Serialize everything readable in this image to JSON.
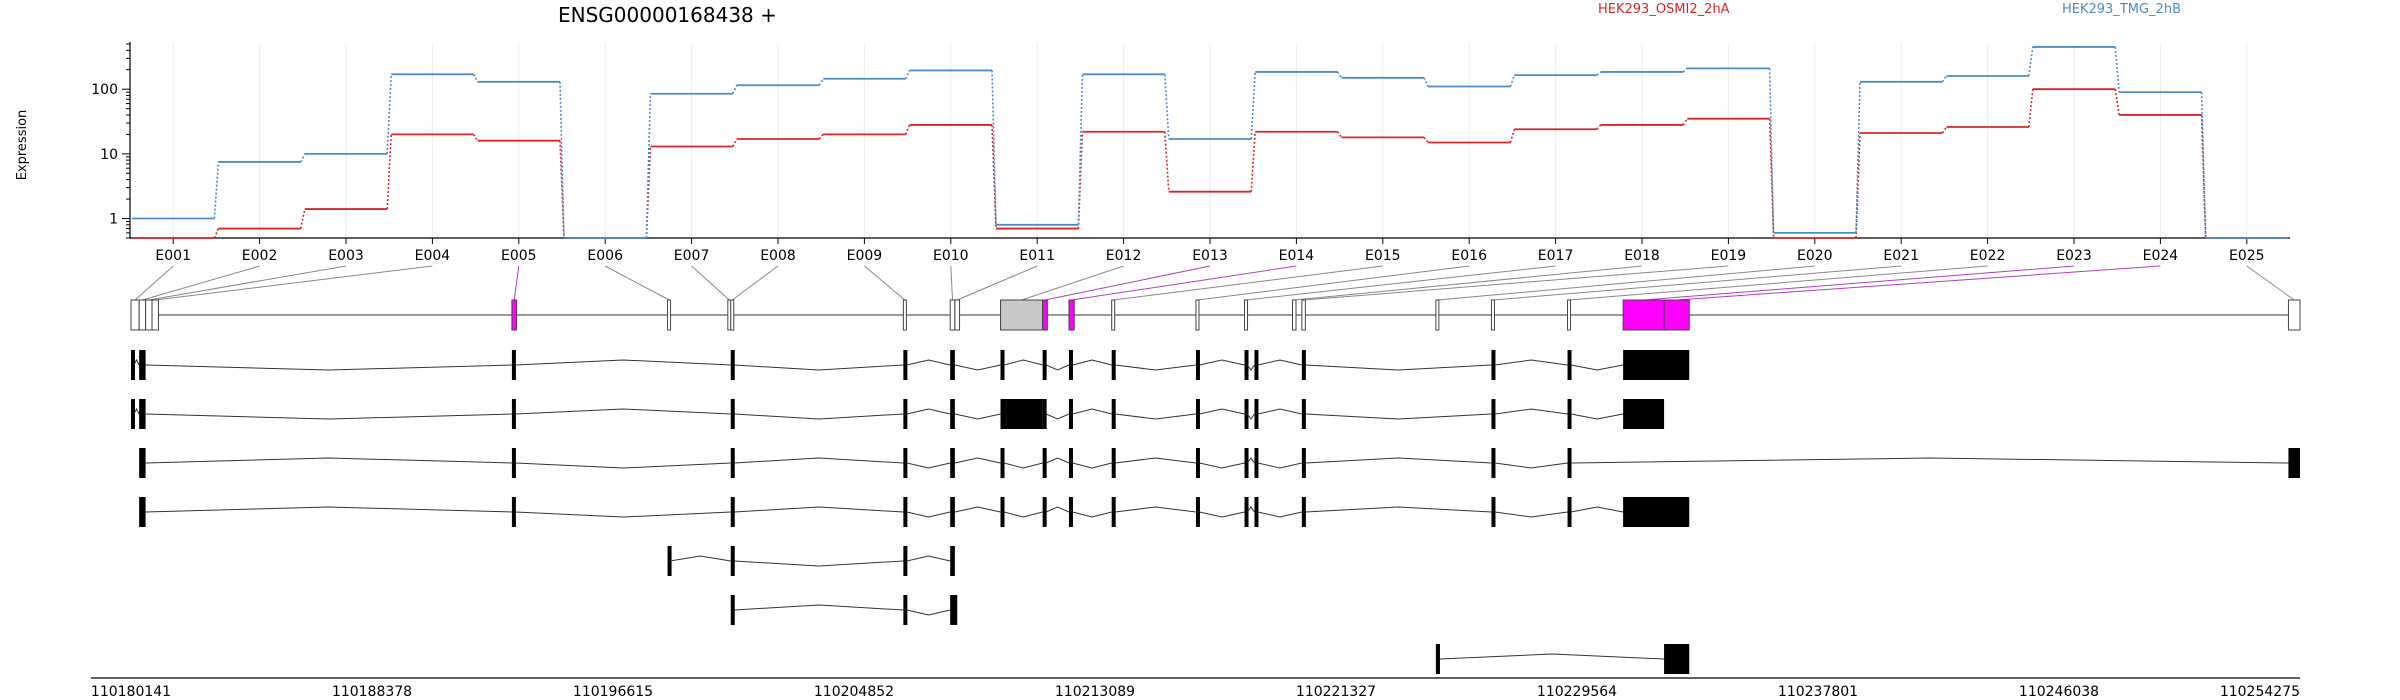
{
  "chart_data": {
    "type": "line",
    "title": "ENSG00000168438 +",
    "ylabel": "Expression",
    "yscale": "log",
    "ylim": [
      0.5,
      500
    ],
    "y_ticks": [
      "1",
      "10",
      "100"
    ],
    "categories": [
      "E001",
      "E002",
      "E003",
      "E004",
      "E005",
      "E006",
      "E007",
      "E008",
      "E009",
      "E010",
      "E011",
      "E012",
      "E013",
      "E014",
      "E015",
      "E016",
      "E017",
      "E018",
      "E019",
      "E020",
      "E021",
      "E022",
      "E023",
      "E024",
      "E025"
    ],
    "series": [
      {
        "name": "HEK293_OSMI2_2hA",
        "color": "#d62728",
        "values": [
          0.5,
          0.7,
          1.4,
          20,
          16,
          0.5,
          13,
          17,
          20,
          28,
          0.7,
          22,
          2.6,
          22,
          18,
          15,
          24,
          28,
          35,
          0.5,
          21,
          26,
          100,
          40,
          0.5
        ]
      },
      {
        "name": "HEK293_TMG_2hB",
        "color": "#4c8cc8",
        "values": [
          1,
          7.5,
          10,
          170,
          130,
          0.5,
          85,
          115,
          145,
          195,
          0.8,
          170,
          17,
          185,
          150,
          110,
          165,
          185,
          210,
          0.6,
          130,
          160,
          450,
          90,
          0.5
        ]
      }
    ],
    "coordinate_ticks": [
      "110180141",
      "110188378",
      "110196615",
      "110204852",
      "110213089",
      "110221327",
      "110229564",
      "110237801",
      "110246038",
      "110254275"
    ],
    "coord_range": [
      110180141,
      110254275
    ],
    "exons": [
      {
        "id": "E001",
        "start": 110180141,
        "end": 110180420,
        "fill": "#ffffff"
      },
      {
        "id": "E002",
        "start": 110180420,
        "end": 110180640,
        "fill": "#ffffff"
      },
      {
        "id": "E003",
        "start": 110180640,
        "end": 110180860,
        "fill": "#ffffff"
      },
      {
        "id": "E004",
        "start": 110180860,
        "end": 110181080,
        "fill": "#ffffff"
      },
      {
        "id": "E005",
        "start": 110193160,
        "end": 110193320,
        "fill": "#ff00ff"
      },
      {
        "id": "E006",
        "start": 110198480,
        "end": 110198580,
        "fill": "#ffffff"
      },
      {
        "id": "E007",
        "start": 110200540,
        "end": 110200640,
        "fill": "#ffffff"
      },
      {
        "id": "E008",
        "start": 110200640,
        "end": 110200740,
        "fill": "#ffffff"
      },
      {
        "id": "E009",
        "start": 110206540,
        "end": 110206640,
        "fill": "#ffffff"
      },
      {
        "id": "E010",
        "start": 110208140,
        "end": 110208300,
        "fill": "#ffffff"
      },
      {
        "id": "E011",
        "start": 110208300,
        "end": 110208460,
        "fill": "#ffffff"
      },
      {
        "id": "E012",
        "start": 110209860,
        "end": 110211300,
        "fill": "#c8c8c8"
      },
      {
        "id": "E013",
        "start": 110211300,
        "end": 110211460,
        "fill": "#ff00ff"
      },
      {
        "id": "E014",
        "start": 110212200,
        "end": 110212380,
        "fill": "#ff00ff"
      },
      {
        "id": "E015",
        "start": 110213660,
        "end": 110213760,
        "fill": "#ffffff"
      },
      {
        "id": "E016",
        "start": 110216540,
        "end": 110216640,
        "fill": "#ffffff"
      },
      {
        "id": "E017",
        "start": 110218200,
        "end": 110218300,
        "fill": "#ffffff"
      },
      {
        "id": "E018",
        "start": 110219840,
        "end": 110219960,
        "fill": "#ffffff"
      },
      {
        "id": "E019",
        "start": 110220160,
        "end": 110220280,
        "fill": "#ffffff"
      },
      {
        "id": "E020",
        "start": 110224740,
        "end": 110224840,
        "fill": "#ffffff"
      },
      {
        "id": "E021",
        "start": 110226640,
        "end": 110226740,
        "fill": "#ffffff"
      },
      {
        "id": "E022",
        "start": 110229240,
        "end": 110229340,
        "fill": "#ffffff"
      },
      {
        "id": "E023",
        "start": 110231140,
        "end": 110232540,
        "fill": "#ff00ff"
      },
      {
        "id": "E024",
        "start": 110232540,
        "end": 110233400,
        "fill": "#ff00ff"
      },
      {
        "id": "E025",
        "start": 110253880,
        "end": 110254275,
        "fill": "#ffffff"
      }
    ],
    "transcripts": [
      {
        "blocks": [
          [
            110180141,
            110180240
          ],
          [
            110180420,
            110180640
          ],
          [
            110193160,
            110193280
          ],
          [
            110200640,
            110200760
          ],
          [
            110206540,
            110206660
          ],
          [
            110208140,
            110208300
          ],
          [
            110209860,
            110209980
          ],
          [
            110211300,
            110211420
          ],
          [
            110212200,
            110212320
          ],
          [
            110213660,
            110213780
          ],
          [
            110216540,
            110216660
          ],
          [
            110218200,
            110218300
          ],
          [
            110218540,
            110218660
          ],
          [
            110220160,
            110220280
          ],
          [
            110226640,
            110226760
          ],
          [
            110229240,
            110229360
          ],
          [
            110231140,
            110233400
          ]
        ]
      },
      {
        "blocks": [
          [
            110180141,
            110180240
          ],
          [
            110180420,
            110180640
          ],
          [
            110193160,
            110193280
          ],
          [
            110200640,
            110200760
          ],
          [
            110206540,
            110206660
          ],
          [
            110208140,
            110208300
          ],
          [
            110209860,
            110211300
          ],
          [
            110211300,
            110211420
          ],
          [
            110212200,
            110212320
          ],
          [
            110213660,
            110213780
          ],
          [
            110216540,
            110216660
          ],
          [
            110218200,
            110218300
          ],
          [
            110218540,
            110218660
          ],
          [
            110220160,
            110220280
          ],
          [
            110226640,
            110226760
          ],
          [
            110229240,
            110229360
          ],
          [
            110231140,
            110232540
          ]
        ]
      },
      {
        "blocks": [
          [
            110180420,
            110180640
          ],
          [
            110193160,
            110193280
          ],
          [
            110200640,
            110200760
          ],
          [
            110206540,
            110206660
          ],
          [
            110208140,
            110208300
          ],
          [
            110209860,
            110209980
          ],
          [
            110211300,
            110211420
          ],
          [
            110212200,
            110212320
          ],
          [
            110213660,
            110213780
          ],
          [
            110216540,
            110216660
          ],
          [
            110218200,
            110218300
          ],
          [
            110218540,
            110218660
          ],
          [
            110220160,
            110220280
          ],
          [
            110226640,
            110226760
          ],
          [
            110229240,
            110229360
          ],
          [
            110253880,
            110254275
          ]
        ]
      },
      {
        "blocks": [
          [
            110180420,
            110180640
          ],
          [
            110193160,
            110193280
          ],
          [
            110200640,
            110200760
          ],
          [
            110206540,
            110206660
          ],
          [
            110208140,
            110208300
          ],
          [
            110209860,
            110209980
          ],
          [
            110211300,
            110211420
          ],
          [
            110212200,
            110212320
          ],
          [
            110213660,
            110213780
          ],
          [
            110216540,
            110216660
          ],
          [
            110218200,
            110218300
          ],
          [
            110218540,
            110218660
          ],
          [
            110220160,
            110220280
          ],
          [
            110226640,
            110226760
          ],
          [
            110229240,
            110229360
          ],
          [
            110231140,
            110233400
          ]
        ]
      },
      {
        "blocks": [
          [
            110198480,
            110198560
          ],
          [
            110200640,
            110200760
          ],
          [
            110206540,
            110206660
          ],
          [
            110208140,
            110208300
          ]
        ]
      },
      {
        "blocks": [
          [
            110200640,
            110200760
          ],
          [
            110206540,
            110206660
          ],
          [
            110208140,
            110208380
          ]
        ]
      },
      {
        "blocks": [
          [
            110224740,
            110224880
          ],
          [
            110232540,
            110233400
          ]
        ]
      }
    ],
    "grid": true,
    "legend": "top-right"
  }
}
